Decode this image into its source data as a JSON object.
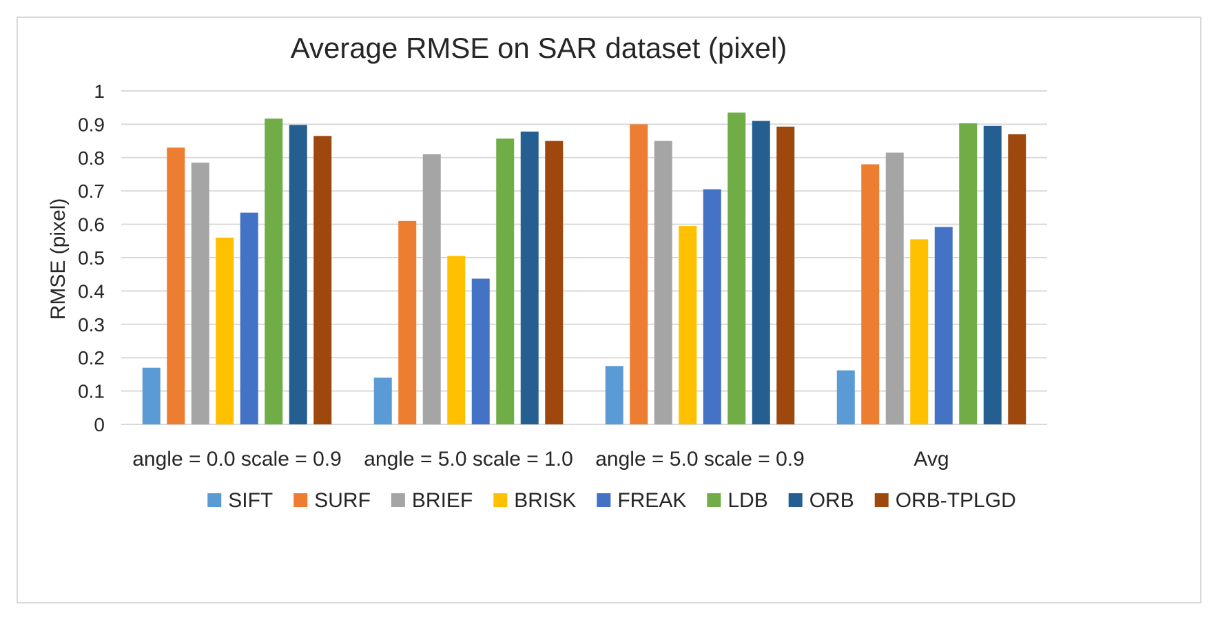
{
  "chart_data": {
    "type": "bar",
    "title": "Average RMSE on SAR dataset (pixel)",
    "xlabel": "",
    "ylabel": "RMSE (pixel)",
    "ylim": [
      0,
      1
    ],
    "yticks": [
      0,
      0.1,
      0.2,
      0.3,
      0.4,
      0.5,
      0.6,
      0.7,
      0.8,
      0.9,
      1
    ],
    "ytick_labels": [
      "0",
      "0.1",
      "0.2",
      "0.3",
      "0.4",
      "0.5",
      "0.6",
      "0.7",
      "0.8",
      "0.9",
      "1"
    ],
    "grid": true,
    "legend_position": "bottom",
    "categories": [
      "angle = 0.0 scale = 0.9",
      "angle = 5.0 scale = 1.0",
      "angle = 5.0 scale = 0.9",
      "Avg"
    ],
    "series": [
      {
        "name": "SIFT",
        "color": "#5b9bd5",
        "values": [
          0.17,
          0.14,
          0.175,
          0.162
        ]
      },
      {
        "name": "SURF",
        "color": "#ed7d31",
        "values": [
          0.83,
          0.61,
          0.9,
          0.78
        ]
      },
      {
        "name": "BRIEF",
        "color": "#a5a5a5",
        "values": [
          0.785,
          0.81,
          0.85,
          0.815
        ]
      },
      {
        "name": "BRISK",
        "color": "#ffc000",
        "values": [
          0.56,
          0.505,
          0.595,
          0.555
        ]
      },
      {
        "name": "FREAK",
        "color": "#4472c4",
        "values": [
          0.635,
          0.437,
          0.705,
          0.592
        ]
      },
      {
        "name": "LDB",
        "color": "#70ad47",
        "values": [
          0.917,
          0.857,
          0.935,
          0.903
        ]
      },
      {
        "name": "ORB",
        "color": "#255e91",
        "values": [
          0.898,
          0.878,
          0.91,
          0.895
        ]
      },
      {
        "name": "ORB-TPLGD",
        "color": "#9e480e",
        "values": [
          0.865,
          0.85,
          0.893,
          0.87
        ]
      }
    ]
  }
}
